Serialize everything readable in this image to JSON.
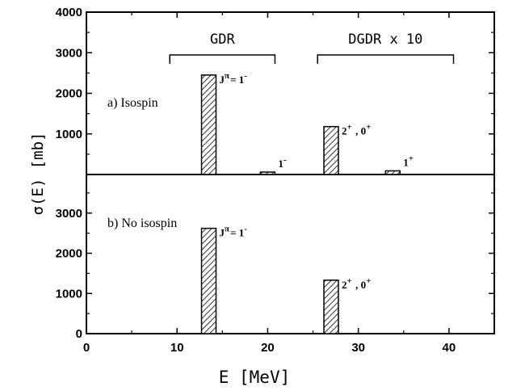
{
  "chart_data": {
    "type": "bar",
    "xlabel": "E [MeV]",
    "ylabel": "σ(E) [mb]",
    "xlim": [
      0,
      45
    ],
    "x_ticks": [
      "0",
      "10",
      "20",
      "30",
      "40"
    ],
    "bar_width_mev": 1.6,
    "bracket_labels": [
      "GDR",
      "DGDR x 10"
    ],
    "panels": [
      {
        "id": "top",
        "label": "a) Isospin",
        "ylim": [
          0,
          4000
        ],
        "y_ticks": [
          "1000",
          "2000",
          "3000",
          "4000"
        ],
        "bars": [
          {
            "x": 13.5,
            "y": 2450,
            "label": "Jπ= 1-"
          },
          {
            "x": 20.0,
            "y": 60,
            "label": "1-"
          },
          {
            "x": 27.0,
            "y": 1180,
            "label": "2+ , 0+"
          },
          {
            "x": 33.8,
            "y": 90,
            "label": "1+"
          }
        ],
        "brackets": [
          {
            "label": "GDR",
            "x_start": 9.2,
            "x_end": 20.8
          },
          {
            "label": "DGDR x 10",
            "x_start": 25.5,
            "x_end": 40.5
          }
        ]
      },
      {
        "id": "bottom",
        "label": "b) No isospin",
        "ylim": [
          0,
          4000
        ],
        "y_ticks": [
          "0",
          "1000",
          "2000",
          "3000"
        ],
        "bars": [
          {
            "x": 13.5,
            "y": 2620,
            "label": "Jπ= 1-"
          },
          {
            "x": 27.0,
            "y": 1330,
            "label": "2+ , 0+"
          }
        ]
      }
    ]
  },
  "colors": {
    "ink": "#000000",
    "background": "#ffffff"
  }
}
